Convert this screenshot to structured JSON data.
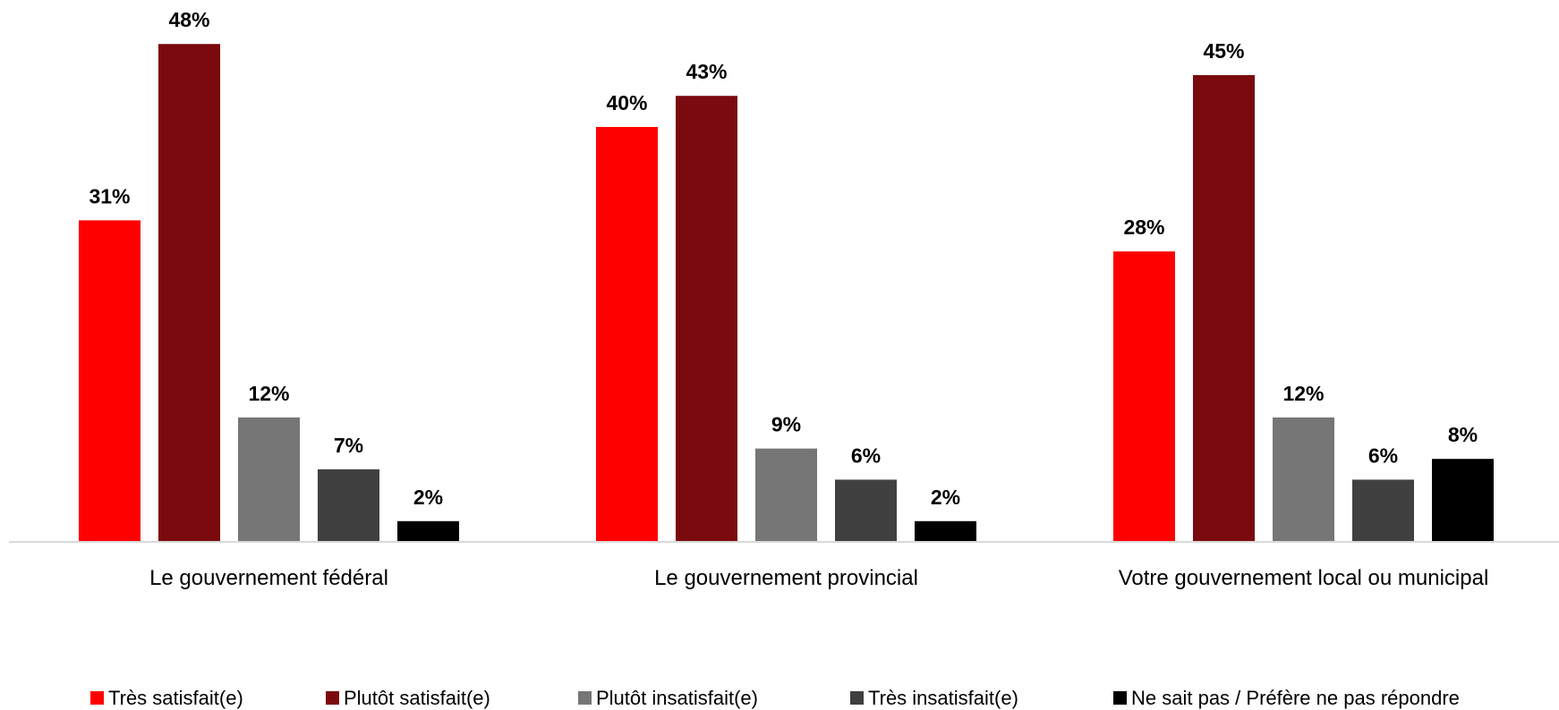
{
  "chart_data": {
    "type": "bar",
    "categories": [
      "Le gouvernement fédéral",
      "Le gouvernement provincial",
      "Votre gouvernement local ou municipal"
    ],
    "series": [
      {
        "name": "Très satisfait(e)",
        "color": "#ff0000",
        "values": [
          31,
          40,
          28
        ]
      },
      {
        "name": "Plutôt satisfait(e)",
        "color": "#7b0a0e",
        "values": [
          48,
          43,
          45
        ]
      },
      {
        "name": "Plutôt insatisfait(e)",
        "color": "#767676",
        "values": [
          12,
          9,
          12
        ]
      },
      {
        "name": "Très insatisfait(e)",
        "color": "#404040",
        "values": [
          7,
          6,
          6
        ]
      },
      {
        "name": "Ne sait pas / Préfère ne pas répondre",
        "color": "#000000",
        "values": [
          2,
          2,
          8
        ]
      }
    ],
    "value_suffix": "%",
    "ylim": [
      0,
      50
    ],
    "grid": false,
    "legend_position": "bottom",
    "axis_color": "#d9d9d9"
  }
}
